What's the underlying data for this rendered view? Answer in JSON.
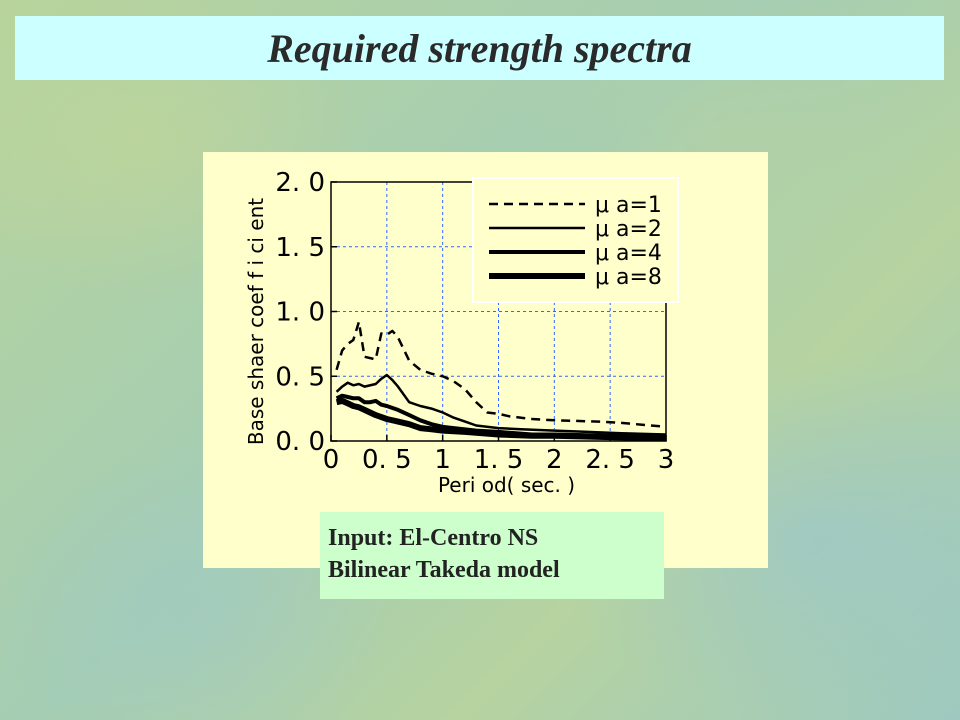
{
  "slide": {
    "title": "Required strength spectra",
    "caption_lines": [
      "Input: El-Centro NS",
      "Bilinear Takeda model"
    ]
  },
  "colors": {
    "title_bar": "#ccffff",
    "chart_panel": "#ffffcc",
    "caption_box": "#ccffcc",
    "grid": "#3366ff"
  },
  "chart_data": {
    "type": "line",
    "title": "",
    "xlabel": "Peri od( sec. )",
    "ylabel": "Base shaer  coef f i ci ent",
    "xlim": [
      0,
      3
    ],
    "ylim": [
      0,
      2.0
    ],
    "grid": true,
    "legend_position": "top-right",
    "x_ticks": [
      {
        "value": 0,
        "label": "0"
      },
      {
        "value": 0.5,
        "label": "0. 5"
      },
      {
        "value": 1,
        "label": "1"
      },
      {
        "value": 1.5,
        "label": "1. 5"
      },
      {
        "value": 2,
        "label": "2"
      },
      {
        "value": 2.5,
        "label": "2. 5"
      },
      {
        "value": 3,
        "label": "3"
      }
    ],
    "y_ticks": [
      {
        "value": 0,
        "label": "0. 0"
      },
      {
        "value": 0.5,
        "label": "0. 5"
      },
      {
        "value": 1.0,
        "label": "1. 0"
      },
      {
        "value": 1.5,
        "label": "1. 5"
      },
      {
        "value": 2.0,
        "label": "2. 0"
      }
    ],
    "series": [
      {
        "name": "μ a=1",
        "style": "dashed",
        "width": 2.5,
        "points": [
          [
            0.05,
            0.55
          ],
          [
            0.1,
            0.7
          ],
          [
            0.15,
            0.75
          ],
          [
            0.2,
            0.78
          ],
          [
            0.25,
            0.92
          ],
          [
            0.3,
            0.65
          ],
          [
            0.4,
            0.63
          ],
          [
            0.45,
            0.83
          ],
          [
            0.5,
            0.82
          ],
          [
            0.55,
            0.85
          ],
          [
            0.6,
            0.8
          ],
          [
            0.7,
            0.62
          ],
          [
            0.8,
            0.55
          ],
          [
            0.9,
            0.52
          ],
          [
            1.0,
            0.5
          ],
          [
            1.1,
            0.46
          ],
          [
            1.2,
            0.4
          ],
          [
            1.3,
            0.3
          ],
          [
            1.4,
            0.22
          ],
          [
            1.5,
            0.21
          ],
          [
            1.6,
            0.19
          ],
          [
            1.8,
            0.17
          ],
          [
            2.0,
            0.16
          ],
          [
            2.4,
            0.15
          ],
          [
            2.6,
            0.14
          ],
          [
            3.0,
            0.11
          ]
        ]
      },
      {
        "name": "μ a=2",
        "style": "solid",
        "width": 2.5,
        "points": [
          [
            0.05,
            0.38
          ],
          [
            0.1,
            0.42
          ],
          [
            0.15,
            0.45
          ],
          [
            0.2,
            0.43
          ],
          [
            0.25,
            0.44
          ],
          [
            0.3,
            0.42
          ],
          [
            0.4,
            0.44
          ],
          [
            0.45,
            0.48
          ],
          [
            0.5,
            0.51
          ],
          [
            0.55,
            0.47
          ],
          [
            0.6,
            0.42
          ],
          [
            0.7,
            0.3
          ],
          [
            0.8,
            0.27
          ],
          [
            0.9,
            0.25
          ],
          [
            1.0,
            0.22
          ],
          [
            1.1,
            0.18
          ],
          [
            1.2,
            0.15
          ],
          [
            1.3,
            0.12
          ],
          [
            1.5,
            0.1
          ],
          [
            1.7,
            0.09
          ],
          [
            2.0,
            0.08
          ],
          [
            2.3,
            0.07
          ],
          [
            2.6,
            0.06
          ],
          [
            3.0,
            0.05
          ]
        ]
      },
      {
        "name": "μ a=4",
        "style": "solid",
        "width": 4,
        "points": [
          [
            0.05,
            0.33
          ],
          [
            0.1,
            0.35
          ],
          [
            0.15,
            0.34
          ],
          [
            0.2,
            0.33
          ],
          [
            0.25,
            0.33
          ],
          [
            0.3,
            0.3
          ],
          [
            0.35,
            0.3
          ],
          [
            0.4,
            0.31
          ],
          [
            0.45,
            0.28
          ],
          [
            0.5,
            0.27
          ],
          [
            0.6,
            0.24
          ],
          [
            0.7,
            0.2
          ],
          [
            0.8,
            0.16
          ],
          [
            0.9,
            0.13
          ],
          [
            1.0,
            0.11
          ],
          [
            1.1,
            0.1
          ],
          [
            1.3,
            0.08
          ],
          [
            1.5,
            0.07
          ],
          [
            1.8,
            0.05
          ],
          [
            2.0,
            0.05
          ],
          [
            2.5,
            0.04
          ],
          [
            3.0,
            0.03
          ]
        ]
      },
      {
        "name": "μ a=8",
        "style": "solid",
        "width": 6,
        "points": [
          [
            0.05,
            0.3
          ],
          [
            0.1,
            0.31
          ],
          [
            0.15,
            0.29
          ],
          [
            0.2,
            0.27
          ],
          [
            0.25,
            0.26
          ],
          [
            0.3,
            0.24
          ],
          [
            0.35,
            0.22
          ],
          [
            0.4,
            0.2
          ],
          [
            0.5,
            0.17
          ],
          [
            0.6,
            0.15
          ],
          [
            0.7,
            0.13
          ],
          [
            0.8,
            0.1
          ],
          [
            0.9,
            0.09
          ],
          [
            1.0,
            0.08
          ],
          [
            1.2,
            0.07
          ],
          [
            1.5,
            0.05
          ],
          [
            1.8,
            0.04
          ],
          [
            2.0,
            0.04
          ],
          [
            2.5,
            0.03
          ],
          [
            3.0,
            0.02
          ]
        ]
      }
    ]
  }
}
